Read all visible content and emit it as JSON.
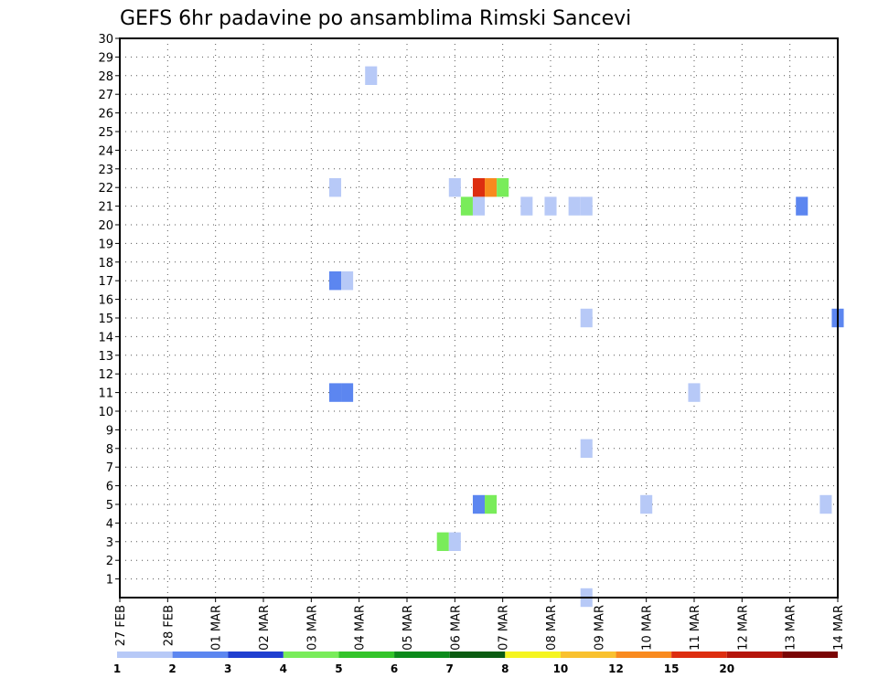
{
  "chart_data": {
    "type": "heatmap",
    "title": "GEFS 6hr padavine po ansamblima Rimski Sancevi",
    "xlabel": "",
    "ylabel": "",
    "x_tick_labels": [
      "27 FEB",
      "28 FEB",
      "01 MAR",
      "02 MAR",
      "03 MAR",
      "04 MAR",
      "05 MAR",
      "06 MAR",
      "07 MAR",
      "08 MAR",
      "09 MAR",
      "10 MAR",
      "11 MAR",
      "12 MAR",
      "13 MAR",
      "14 MAR"
    ],
    "xlim": [
      0,
      60
    ],
    "ylim": [
      0,
      30
    ],
    "y_ticks": [
      1,
      2,
      3,
      4,
      5,
      6,
      7,
      8,
      9,
      10,
      11,
      12,
      13,
      14,
      15,
      16,
      17,
      18,
      19,
      20,
      21,
      22,
      23,
      24,
      25,
      26,
      27,
      28,
      29,
      30
    ],
    "grid": true,
    "colorbar": {
      "labels": [
        "1",
        "2",
        "3",
        "4",
        "5",
        "6",
        "7",
        "8",
        "10",
        "12",
        "15",
        "20"
      ],
      "colors": [
        "#b7c9f7",
        "#5c86f0",
        "#1f3fd0",
        "#79ec5a",
        "#33c42a",
        "#0b8a1b",
        "#0b5c12",
        "#f5f520",
        "#f9c12f",
        "#f98a1e",
        "#dd2e10",
        "#b5150a",
        "#7a0505"
      ]
    },
    "cells": [
      {
        "step": 18,
        "member": 22,
        "value": 1.5
      },
      {
        "step": 21,
        "member": 28,
        "value": 1.5
      },
      {
        "step": 18,
        "member": 17,
        "value": 2.5
      },
      {
        "step": 19,
        "member": 17,
        "value": 1.5
      },
      {
        "step": 18,
        "member": 11,
        "value": 2.5
      },
      {
        "step": 19,
        "member": 11,
        "value": 2.5
      },
      {
        "step": 27,
        "member": 3,
        "value": 4.5
      },
      {
        "step": 28,
        "member": 3,
        "value": 1.5
      },
      {
        "step": 28,
        "member": 22,
        "value": 1.5
      },
      {
        "step": 30,
        "member": 22,
        "value": 15
      },
      {
        "step": 31,
        "member": 22,
        "value": 12
      },
      {
        "step": 32,
        "member": 22,
        "value": 4.5
      },
      {
        "step": 29,
        "member": 21,
        "value": 4.5
      },
      {
        "step": 30,
        "member": 21,
        "value": 1.5
      },
      {
        "step": 30,
        "member": 5,
        "value": 2.5
      },
      {
        "step": 31,
        "member": 5,
        "value": 4.5
      },
      {
        "step": 34,
        "member": 21,
        "value": 1.5
      },
      {
        "step": 36,
        "member": 21,
        "value": 1.5
      },
      {
        "step": 38,
        "member": 21,
        "value": 1.5
      },
      {
        "step": 39,
        "member": 21,
        "value": 1.5
      },
      {
        "step": 39,
        "member": 15,
        "value": 1.5
      },
      {
        "step": 39,
        "member": 8,
        "value": 1.5
      },
      {
        "step": 39,
        "member": 0,
        "value": 1.5
      },
      {
        "step": 44,
        "member": 5,
        "value": 1.5
      },
      {
        "step": 48,
        "member": 11,
        "value": 1.5
      },
      {
        "step": 57,
        "member": 21,
        "value": 2.5
      },
      {
        "step": 60,
        "member": 15,
        "value": 2.5
      },
      {
        "step": 59,
        "member": 5,
        "value": 1.5
      }
    ]
  }
}
